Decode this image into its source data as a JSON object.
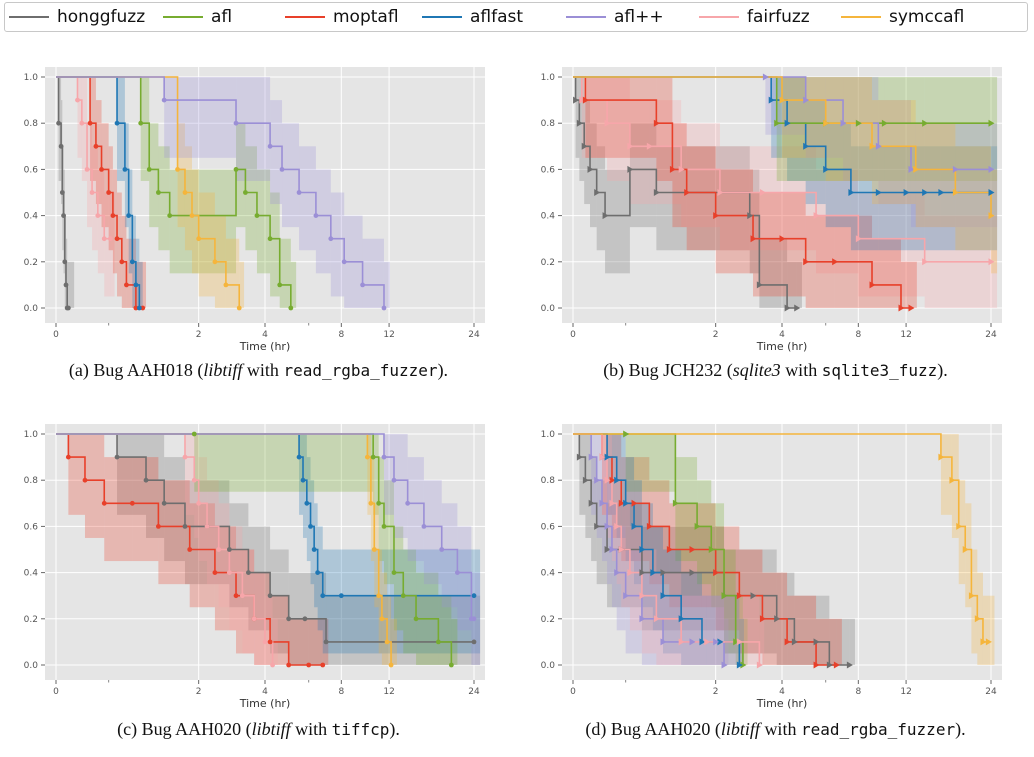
{
  "legend": [
    {
      "name": "honggfuzz",
      "color": "#6e6e6e"
    },
    {
      "name": "afl",
      "color": "#77ac30"
    },
    {
      "name": "moptafl",
      "color": "#e8402a"
    },
    {
      "name": "aflfast",
      "color": "#1f77b4"
    },
    {
      "name": "afl++",
      "color": "#9b8fd6"
    },
    {
      "name": "fairfuzz",
      "color": "#f7a6aa"
    },
    {
      "name": "symccafl",
      "color": "#f5b53c"
    }
  ],
  "captions": [
    {
      "prefix": "(a) Bug AAH018 (",
      "software": "libtiff",
      "middle": " with ",
      "harness": "read_rgba_fuzzer",
      "suffix": ")."
    },
    {
      "prefix": "(b) Bug JCH232 (",
      "software": "sqlite3",
      "middle": " with ",
      "harness": "sqlite3_fuzz",
      "suffix": ")."
    },
    {
      "prefix": "(c) Bug AAH020 (",
      "software": "libtiff",
      "middle": " with ",
      "harness": "tiffcp",
      "suffix": ")."
    },
    {
      "prefix": "(d) Bug AAH020 (",
      "software": "libtiff",
      "middle": " with ",
      "harness": "read_rgba_fuzzer",
      "suffix": ")."
    }
  ],
  "chart_data": [
    {
      "type": "line",
      "style": "step",
      "panel": "a",
      "xlabel": "Time (hr)",
      "ylabel": "",
      "xscale": "log",
      "xlim": [
        0,
        24
      ],
      "ylim": [
        0,
        1.0
      ],
      "x_ticks": [
        "0",
        "2",
        "4",
        "8",
        "12",
        "24"
      ],
      "y_ticks": [
        "0.0",
        "0.2",
        "0.4",
        "0.6",
        "0.8",
        "1.0"
      ],
      "grid": true,
      "series": [
        {
          "name": "honggfuzz",
          "x": [
            0,
            0.02,
            0.04,
            0.05,
            0.06,
            0.07,
            0.08,
            0.09,
            0.1
          ],
          "y": [
            1.0,
            0.8,
            0.7,
            0.5,
            0.4,
            0.2,
            0.1,
            0.0,
            0.0
          ]
        },
        {
          "name": "fairfuzz",
          "x": [
            0,
            0.18,
            0.22,
            0.27,
            0.32,
            0.38,
            0.45,
            0.52
          ],
          "y": [
            1.0,
            0.9,
            0.8,
            0.6,
            0.5,
            0.4,
            0.3,
            0.3
          ]
        },
        {
          "name": "moptafl",
          "x": [
            0,
            0.3,
            0.36,
            0.42,
            0.5,
            0.55,
            0.6,
            0.66,
            0.72,
            0.85,
            0.95
          ],
          "y": [
            1.0,
            0.8,
            0.7,
            0.6,
            0.5,
            0.4,
            0.3,
            0.2,
            0.1,
            0.0,
            0.0
          ]
        },
        {
          "name": "aflfast",
          "x": [
            0,
            0.6,
            0.7,
            0.75,
            0.8,
            0.85,
            0.9
          ],
          "y": [
            1.0,
            0.8,
            0.6,
            0.4,
            0.2,
            0.1,
            0.0
          ]
        },
        {
          "name": "afl",
          "x": [
            0,
            0.92,
            1.05,
            1.2,
            1.4,
            3.0,
            3.3,
            3.7,
            4.2,
            4.6,
            5.1
          ],
          "y": [
            1.0,
            0.8,
            0.6,
            0.5,
            0.4,
            0.6,
            0.5,
            0.4,
            0.3,
            0.1,
            0.0
          ]
        },
        {
          "name": "symccafl",
          "x": [
            0,
            1.55,
            1.7,
            1.85,
            2.0,
            2.4,
            2.7,
            3.1
          ],
          "y": [
            1.0,
            0.6,
            0.5,
            0.4,
            0.3,
            0.2,
            0.1,
            0.0
          ]
        },
        {
          "name": "afl++",
          "x": [
            0,
            1.3,
            3.0,
            4.2,
            4.7,
            5.5,
            6.4,
            7.3,
            8.2,
            9.6,
            11.5
          ],
          "y": [
            1.0,
            0.9,
            0.8,
            0.7,
            0.6,
            0.5,
            0.4,
            0.3,
            0.2,
            0.1,
            0.0
          ]
        }
      ]
    },
    {
      "type": "line",
      "style": "step",
      "panel": "b",
      "xlabel": "Time (hr)",
      "ylabel": "",
      "xscale": "log",
      "xlim": [
        0,
        24
      ],
      "ylim": [
        0,
        1.0
      ],
      "x_ticks": [
        "0",
        "2",
        "4",
        "8",
        "12",
        "24"
      ],
      "y_ticks": [
        "0.0",
        "0.2",
        "0.4",
        "0.6",
        "0.8",
        "1.0"
      ],
      "grid": true,
      "series": [
        {
          "name": "honggfuzz",
          "x": [
            0,
            0.02,
            0.05,
            0.09,
            0.14,
            0.2,
            0.28,
            0.55,
            0.9,
            2.9,
            3.2,
            4.2,
            4.6
          ],
          "y": [
            1.0,
            0.9,
            0.8,
            0.7,
            0.6,
            0.5,
            0.4,
            0.6,
            0.5,
            0.4,
            0.1,
            0.0,
            0.0
          ]
        },
        {
          "name": "fairfuzz",
          "x": [
            0,
            0.07,
            0.3,
            0.55,
            0.8,
            1.3,
            2.1,
            3.3,
            5.5,
            8.0,
            14,
            24
          ],
          "y": [
            1.0,
            0.9,
            0.8,
            0.7,
            0.7,
            0.6,
            0.5,
            0.5,
            0.4,
            0.3,
            0.2,
            0.2
          ]
        },
        {
          "name": "moptafl",
          "x": [
            0,
            0.1,
            0.9,
            1.15,
            1.4,
            2.0,
            3.0,
            4.0,
            5.0,
            6.5,
            9.0,
            11.5,
            12.5
          ],
          "y": [
            1.0,
            0.9,
            0.8,
            0.6,
            0.5,
            0.4,
            0.3,
            0.3,
            0.2,
            0.2,
            0.1,
            0.0,
            0.0
          ]
        },
        {
          "name": "aflfast",
          "x": [
            0,
            3.6,
            4.2,
            5.0,
            6.0,
            7.5,
            9.5,
            12,
            14,
            16,
            24
          ],
          "y": [
            1.0,
            0.9,
            0.8,
            0.7,
            0.6,
            0.5,
            0.5,
            0.5,
            0.5,
            0.5,
            0.5
          ]
        },
        {
          "name": "afl",
          "x": [
            0,
            3.8,
            6.0,
            8.0,
            10.0,
            14,
            24
          ],
          "y": [
            1.0,
            0.8,
            0.8,
            0.8,
            0.8,
            0.8,
            0.8
          ]
        },
        {
          "name": "afl++",
          "x": [
            0,
            3.4,
            5.0,
            7.0,
            9.5,
            12.5,
            18,
            24
          ],
          "y": [
            1.0,
            1.0,
            0.9,
            0.8,
            0.7,
            0.6,
            0.6,
            0.6
          ]
        },
        {
          "name": "symccafl",
          "x": [
            0,
            4.0,
            6.0,
            9.0,
            13,
            18,
            24
          ],
          "y": [
            1.0,
            0.9,
            0.8,
            0.7,
            0.6,
            0.5,
            0.4
          ]
        }
      ]
    },
    {
      "type": "line",
      "style": "step",
      "panel": "c",
      "xlabel": "Time (hr)",
      "ylabel": "",
      "xscale": "log",
      "xlim": [
        0,
        24
      ],
      "ylim": [
        0,
        1.0
      ],
      "x_ticks": [
        "0",
        "2",
        "4",
        "8",
        "12",
        "24"
      ],
      "y_ticks": [
        "0.0",
        "0.2",
        "0.4",
        "0.6",
        "0.8",
        "1.0"
      ],
      "grid": true,
      "series": [
        {
          "name": "honggfuzz",
          "x": [
            0,
            0.6,
            1.0,
            1.3,
            1.7,
            2.2,
            2.8,
            3.4,
            4.2,
            5.0,
            5.8,
            7.0,
            24
          ],
          "y": [
            1.0,
            0.9,
            0.8,
            0.7,
            0.6,
            0.6,
            0.5,
            0.4,
            0.3,
            0.2,
            0.2,
            0.1,
            0.1
          ]
        },
        {
          "name": "moptafl",
          "x": [
            0,
            0.1,
            0.25,
            0.45,
            0.8,
            1.2,
            1.8,
            2.4,
            3.0,
            3.6,
            4.2,
            5.0,
            6.0,
            6.8
          ],
          "y": [
            1.0,
            0.9,
            0.8,
            0.7,
            0.7,
            0.6,
            0.5,
            0.4,
            0.3,
            0.2,
            0.1,
            0.0,
            0.0,
            0.0
          ]
        },
        {
          "name": "fairfuzz",
          "x": [
            0,
            1.7,
            1.9,
            2.0,
            2.2,
            2.5,
            2.8,
            3.2,
            3.6,
            4.0,
            4.3
          ],
          "y": [
            1.0,
            0.9,
            0.8,
            0.7,
            0.6,
            0.5,
            0.4,
            0.3,
            0.2,
            0.1,
            0.0
          ]
        },
        {
          "name": "aflfast",
          "x": [
            0,
            5.5,
            5.7,
            5.9,
            6.1,
            6.3,
            6.5,
            6.8,
            8.0,
            24
          ],
          "y": [
            1.0,
            0.9,
            0.8,
            0.7,
            0.6,
            0.5,
            0.4,
            0.3,
            0.3,
            0.3
          ]
        },
        {
          "name": "afl",
          "x": [
            0,
            1.9,
            10.5,
            11.0,
            11.5,
            12.5,
            13.5,
            15.0,
            18.0,
            20.0
          ],
          "y": [
            1.0,
            1.0,
            0.9,
            0.7,
            0.6,
            0.4,
            0.3,
            0.2,
            0.1,
            0.0
          ]
        },
        {
          "name": "symccafl",
          "x": [
            0,
            10.0,
            10.3,
            10.6,
            11.0,
            11.3,
            11.8,
            12.2
          ],
          "y": [
            1.0,
            0.9,
            0.7,
            0.5,
            0.3,
            0.2,
            0.1,
            0.0
          ]
        },
        {
          "name": "afl++",
          "x": [
            0,
            11.5,
            12.5,
            14.0,
            16.0,
            18.5,
            21.0,
            23.5,
            24
          ],
          "y": [
            1.0,
            0.9,
            0.8,
            0.7,
            0.6,
            0.5,
            0.4,
            0.2,
            0.2
          ]
        }
      ]
    },
    {
      "type": "line",
      "style": "step",
      "panel": "d",
      "xlabel": "Time (hr)",
      "ylabel": "",
      "xscale": "log",
      "xlim": [
        0,
        24
      ],
      "ylim": [
        0,
        1.0
      ],
      "x_ticks": [
        "0",
        "2",
        "4",
        "8",
        "12",
        "24"
      ],
      "y_ticks": [
        "0.0",
        "0.2",
        "0.4",
        "0.6",
        "0.8",
        "1.0"
      ],
      "grid": true,
      "series": [
        {
          "name": "honggfuzz",
          "x": [
            0,
            0.05,
            0.1,
            0.15,
            0.2,
            0.3,
            0.45,
            0.7,
            1.0,
            1.5,
            2.2,
            3.0,
            3.8,
            4.5,
            5.5,
            6.2,
            7.4
          ],
          "y": [
            1.0,
            0.9,
            0.8,
            0.7,
            0.6,
            0.5,
            0.5,
            0.4,
            0.4,
            0.4,
            0.3,
            0.3,
            0.2,
            0.1,
            0.1,
            0.0,
            0.0
          ]
        },
        {
          "name": "moptafl",
          "x": [
            0,
            0.25,
            0.35,
            0.45,
            0.6,
            0.8,
            1.1,
            1.5,
            2.0,
            2.6,
            3.3,
            4.2,
            5.5,
            6.6
          ],
          "y": [
            1.0,
            0.9,
            0.8,
            0.7,
            0.7,
            0.6,
            0.5,
            0.5,
            0.4,
            0.3,
            0.2,
            0.1,
            0.0,
            0.0
          ]
        },
        {
          "name": "afl",
          "x": [
            0,
            0.5,
            1.2,
            1.6,
            1.9,
            2.2,
            2.5,
            2.7
          ],
          "y": [
            1.0,
            1.0,
            0.7,
            0.6,
            0.5,
            0.3,
            0.1,
            0.0
          ]
        },
        {
          "name": "aflfast",
          "x": [
            0,
            0.3,
            0.4,
            0.5,
            0.6,
            0.7,
            0.85,
            1.0,
            1.3,
            1.7,
            2.1,
            2.6
          ],
          "y": [
            1.0,
            0.9,
            0.8,
            0.7,
            0.6,
            0.5,
            0.4,
            0.3,
            0.2,
            0.1,
            0.1,
            0.0
          ]
        },
        {
          "name": "afl++",
          "x": [
            0,
            0.15,
            0.2,
            0.25,
            0.3,
            0.35,
            0.4,
            0.5,
            0.7,
            1.0,
            1.5,
            2.0,
            2.2
          ],
          "y": [
            1.0,
            0.9,
            0.8,
            0.7,
            0.6,
            0.5,
            0.4,
            0.3,
            0.2,
            0.1,
            0.1,
            0.1,
            0.0
          ]
        },
        {
          "name": "fairfuzz",
          "x": [
            0,
            0.25,
            0.3,
            0.35,
            0.4,
            0.45,
            0.55,
            0.7,
            0.9,
            1.3,
            1.8,
            2.6,
            3.2
          ],
          "y": [
            1.0,
            0.9,
            0.8,
            0.7,
            0.6,
            0.5,
            0.4,
            0.3,
            0.2,
            0.1,
            0.1,
            0.1,
            0.0
          ]
        },
        {
          "name": "symccafl",
          "x": [
            0,
            16.0,
            17.5,
            18.5,
            19.5,
            20.5,
            21.5,
            22.5,
            23.5
          ],
          "y": [
            1.0,
            0.9,
            0.8,
            0.6,
            0.5,
            0.3,
            0.2,
            0.1,
            0.1
          ]
        }
      ]
    }
  ]
}
